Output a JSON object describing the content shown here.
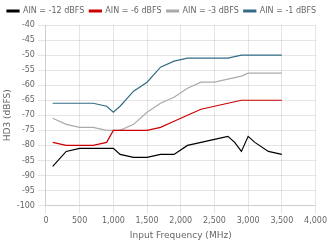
{
  "chart_data": {
    "type": "line",
    "xlabel": "Input Frequency (MHz)",
    "ylabel": "HD3 (dBFS)",
    "xlim": [
      0,
      4000
    ],
    "ylim": [
      -100,
      -40
    ],
    "xticks": [
      0,
      500,
      1000,
      1500,
      2000,
      2500,
      3000,
      3500,
      4000
    ],
    "yticks": [
      -100,
      -95,
      -90,
      -85,
      -80,
      -75,
      -70,
      -65,
      -60,
      -55,
      -50,
      -45,
      -40
    ],
    "grid": true,
    "legend": "upper left",
    "series": [
      {
        "name": "AIN = -12 dBFS",
        "color": "#000000",
        "x": [
          100,
          300,
          500,
          700,
          900,
          1000,
          1100,
          1300,
          1500,
          1700,
          1900,
          2100,
          2300,
          2500,
          2700,
          2800,
          2900,
          3000,
          3100,
          3300,
          3500
        ],
        "values": [
          -87,
          -82,
          -81,
          -81,
          -81,
          -81,
          -83,
          -84,
          -84,
          -83,
          -83,
          -80,
          -79,
          -78,
          -77,
          -79,
          -82,
          -77,
          -79,
          -82,
          -83
        ]
      },
      {
        "name": "AIN = -6 dBFS",
        "color": "#cc0000",
        "x": [
          100,
          300,
          500,
          700,
          900,
          1000,
          1100,
          1300,
          1500,
          1700,
          1900,
          2100,
          2300,
          2500,
          2700,
          2900,
          3000,
          3200,
          3500
        ],
        "values": [
          -79,
          -80,
          -80,
          -80,
          -79,
          -75,
          -75,
          -75,
          -75,
          -74,
          -72,
          -70,
          -68,
          -67,
          -66,
          -65,
          -65,
          -65,
          -65
        ]
      },
      {
        "name": "AIN = -3 dBFS",
        "color": "#aaaaaa",
        "x": [
          100,
          300,
          500,
          700,
          900,
          1000,
          1100,
          1300,
          1500,
          1700,
          1900,
          2100,
          2300,
          2500,
          2700,
          2900,
          3000,
          3200,
          3500
        ],
        "values": [
          -71,
          -73,
          -74,
          -74,
          -75,
          -75,
          -75,
          -73,
          -69,
          -66,
          -64,
          -61,
          -59,
          -59,
          -58,
          -57,
          -56,
          -56,
          -56
        ]
      },
      {
        "name": "AIN = -1 dBFS",
        "color": "#336b87",
        "x": [
          100,
          300,
          500,
          600,
          700,
          900,
          1000,
          1100,
          1300,
          1500,
          1700,
          1900,
          2100,
          2300,
          2500,
          2700,
          2900,
          3000,
          3200,
          3500
        ],
        "values": [
          -66,
          -66,
          -66,
          -66,
          -66,
          -67,
          -69,
          -67,
          -62,
          -59,
          -54,
          -52,
          -51,
          -51,
          -51,
          -51,
          -50,
          -50,
          -50,
          -50
        ]
      }
    ]
  }
}
